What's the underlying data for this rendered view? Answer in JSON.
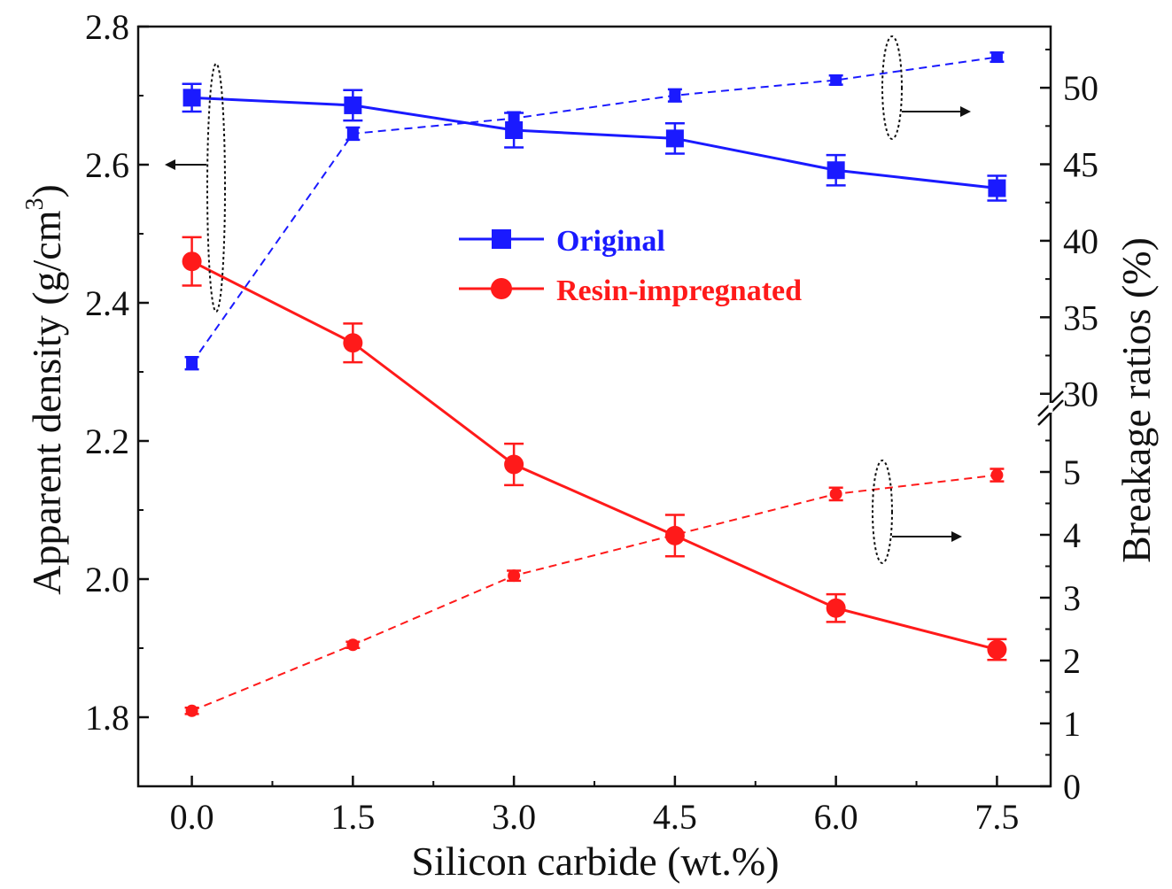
{
  "chart_data": {
    "type": "line",
    "x": [
      0.0,
      1.5,
      3.0,
      4.5,
      6.0,
      7.5
    ],
    "xlabel": "Silicon carbide (wt.%)",
    "xlim": [
      -0.5,
      8.0
    ],
    "xticks": [
      "0.0",
      "1.5",
      "3.0",
      "4.5",
      "6.0",
      "7.5"
    ],
    "ylabel_left": "Apparent density (g/cm",
    "ylabel_left_superscript": "3",
    "ylabel_left_close": ")",
    "ylim_left": [
      1.7,
      2.8
    ],
    "yticks_left": [
      "1.8",
      "2.0",
      "2.2",
      "2.4",
      "2.6",
      "2.8"
    ],
    "ylabel_right": "Breakage ratios (%)",
    "yticks_right_lower": [
      "0",
      "1",
      "2",
      "3",
      "4",
      "5"
    ],
    "ylim_right_lower": [
      0,
      6
    ],
    "yticks_right_upper": [
      "30",
      "35",
      "40",
      "45",
      "50"
    ],
    "ylim_right_upper": [
      29,
      54
    ],
    "axis_break": "between 6 and 29 on right axis",
    "legend_position": "center",
    "series": [
      {
        "name": "Original",
        "axis": "left",
        "style": "solid",
        "marker": "square",
        "color": "#1a1aff",
        "values": [
          2.697,
          2.686,
          2.65,
          2.638,
          2.592,
          2.566
        ],
        "errors": [
          0.02,
          0.022,
          0.025,
          0.022,
          0.022,
          0.018
        ]
      },
      {
        "name": "Resin-impregnated",
        "axis": "left",
        "style": "solid",
        "marker": "circle",
        "color": "#ff1a1a",
        "values": [
          2.46,
          2.342,
          2.166,
          2.063,
          1.958,
          1.898
        ],
        "errors": [
          0.035,
          0.028,
          0.03,
          0.03,
          0.02,
          0.015
        ]
      },
      {
        "axis": "right",
        "style": "dashed",
        "marker": "square",
        "color": "#1a1aff",
        "values": [
          32.0,
          47.0,
          48.0,
          49.5,
          50.5,
          52.0
        ],
        "errors": [
          0.4,
          0.4,
          0.4,
          0.4,
          0.3,
          0.3
        ]
      },
      {
        "axis": "right",
        "style": "dashed",
        "marker": "circle",
        "color": "#ff1a1a",
        "values": [
          1.2,
          2.25,
          3.35,
          4.0,
          4.65,
          4.95
        ],
        "errors": [
          0.05,
          0.05,
          0.08,
          0.08,
          0.1,
          0.1
        ]
      }
    ]
  }
}
